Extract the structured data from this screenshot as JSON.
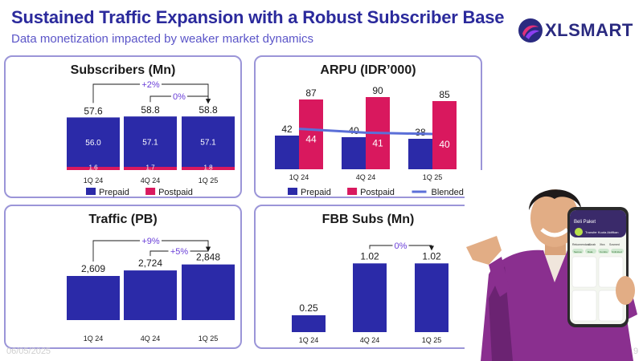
{
  "header": {
    "title": "Sustained Traffic Expansion with a Robust Subscriber Base",
    "subtitle": "Data monetization impacted by weaker market dynamics",
    "logo_text": "XLSMART"
  },
  "footer": {
    "date": "06/05/2025",
    "page": "9"
  },
  "colors": {
    "prepaid": "#2b2aa8",
    "postpaid": "#d9185e",
    "blended": "#5b6fd8",
    "title": "#2b2a9c",
    "panel_border": "#9b95d8"
  },
  "phone": {
    "app_title": "Beli Paket",
    "promo": "Transfer Kuota Aktifkan",
    "tabs": [
      "Rekomendasi",
      "Akrab",
      "Xtra",
      "Sosmed"
    ],
    "chips": [
      "Semua",
      "Data",
      "Combo",
      "Unlimited"
    ]
  },
  "chart_data": [
    {
      "type": "bar",
      "title": "Subscribers (Mn)",
      "categories": [
        "1Q 24",
        "4Q 24",
        "1Q 25"
      ],
      "series": [
        {
          "name": "Prepaid",
          "values": [
            56.0,
            57.1,
            57.1
          ]
        },
        {
          "name": "Postpaid",
          "values": [
            1.6,
            1.7,
            1.8
          ]
        }
      ],
      "totals": [
        "57.6",
        "58.8",
        "58.8"
      ],
      "segment_labels": {
        "Prepaid": [
          "56.0",
          "57.1",
          "57.1"
        ],
        "Postpaid": [
          "1.6",
          "1.7",
          "1.8"
        ]
      },
      "stacked": true,
      "annotations": [
        {
          "text": "+2%",
          "from": "1Q 24",
          "to": "1Q 25"
        },
        {
          "text": "0%",
          "from": "4Q 24",
          "to": "1Q 25"
        }
      ],
      "legend": [
        "Prepaid",
        "Postpaid"
      ],
      "legend_position": "bottom"
    },
    {
      "type": "bar",
      "title": "ARPU (IDR’000)",
      "categories": [
        "1Q 24",
        "4Q 24",
        "1Q 25"
      ],
      "series": [
        {
          "name": "Prepaid",
          "values": [
            42,
            40,
            38
          ]
        },
        {
          "name": "Postpaid",
          "values": [
            87,
            90,
            85
          ]
        },
        {
          "name": "Blended",
          "values": [
            44,
            41,
            40
          ],
          "kind": "line"
        }
      ],
      "legend": [
        "Prepaid",
        "Postpaid",
        "Blended"
      ],
      "legend_position": "bottom"
    },
    {
      "type": "bar",
      "title": "Traffic (PB)",
      "categories": [
        "1Q 24",
        "4Q 24",
        "1Q 25"
      ],
      "values": [
        2609,
        2724,
        2848
      ],
      "labels": [
        "2,609",
        "2,724",
        "2,848"
      ],
      "annotations": [
        {
          "text": "+9%",
          "from": "1Q 24",
          "to": "1Q 25"
        },
        {
          "text": "+5%",
          "from": "4Q 24",
          "to": "1Q 25"
        }
      ]
    },
    {
      "type": "bar",
      "title": "FBB Subs (Mn)",
      "categories": [
        "1Q 24",
        "4Q 24",
        "1Q 25"
      ],
      "values": [
        0.25,
        1.02,
        1.02
      ],
      "labels": [
        "0.25",
        "1.02",
        "1.02"
      ],
      "annotations": [
        {
          "text": "0%",
          "from": "4Q 24",
          "to": "1Q 25"
        }
      ]
    }
  ]
}
